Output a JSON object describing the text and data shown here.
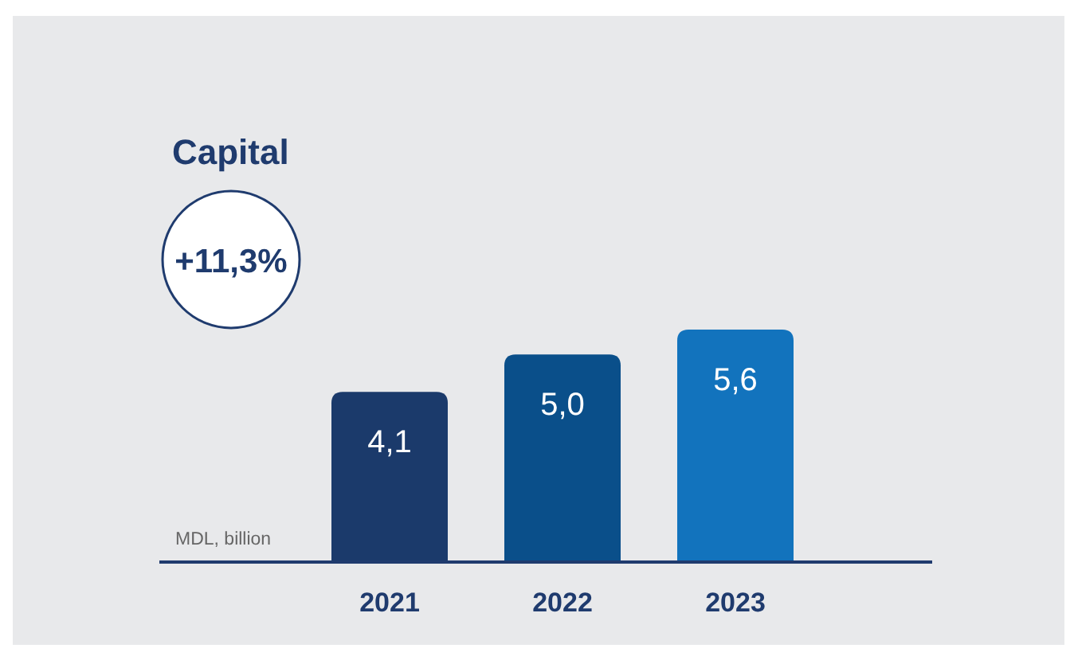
{
  "chart_data": {
    "type": "bar",
    "title": "Capital",
    "ylabel": "MDL, billion",
    "categories": [
      "2021",
      "2022",
      "2023"
    ],
    "values": [
      4.1,
      5.0,
      5.6
    ],
    "colors": [
      "#1b3a6b",
      "#0a4f8a",
      "#1273bd"
    ],
    "value_labels": [
      "4,1",
      "5,0",
      "5,6"
    ],
    "annotations": [
      "+11,3%"
    ]
  }
}
